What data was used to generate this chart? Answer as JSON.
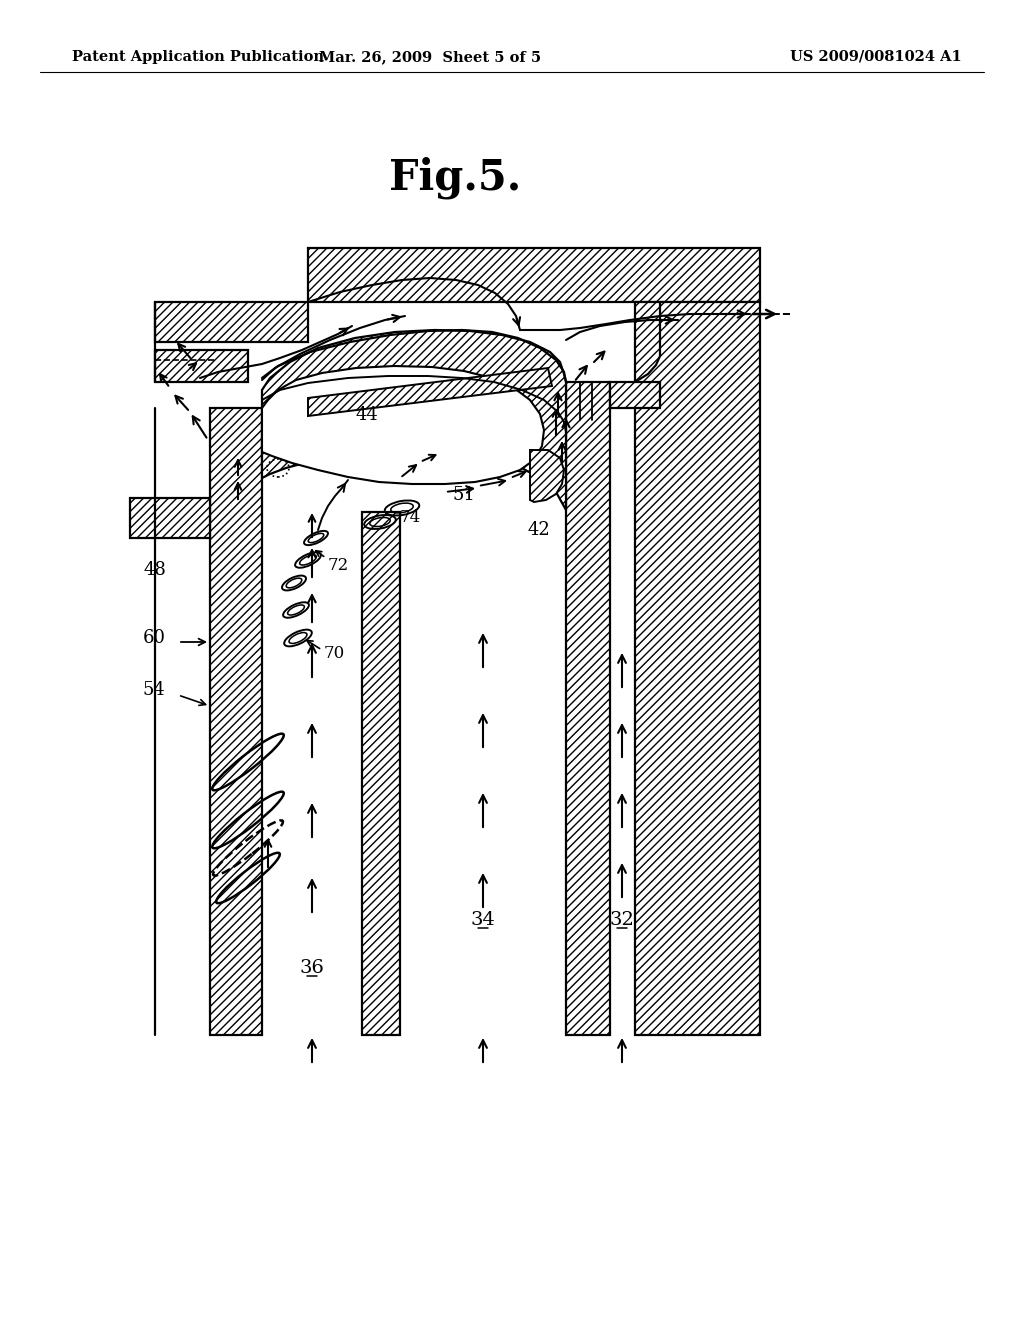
{
  "title": "Fig.5.",
  "header_left": "Patent Application Publication",
  "header_mid": "Mar. 26, 2009  Sheet 5 of 5",
  "header_right": "US 2009/0081024 A1",
  "bg_color": "#ffffff"
}
